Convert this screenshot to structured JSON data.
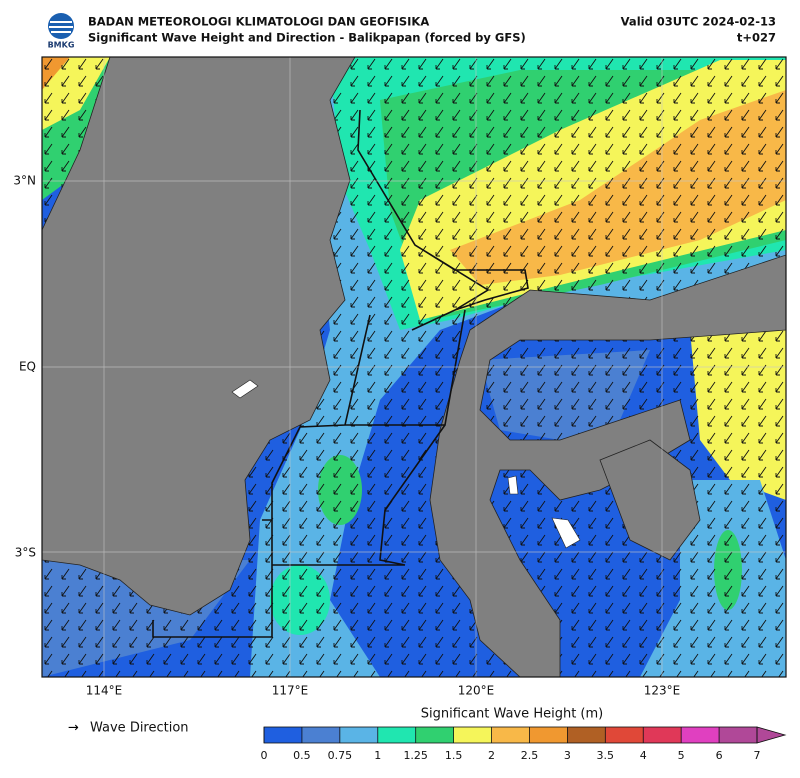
{
  "header": {
    "title": "BADAN METEOROLOGI KLIMATOLOGI DAN GEOFISIKA",
    "subtitle": "Significant Wave Height and Direction - Balikpapan (forced by GFS)",
    "valid": "Valid 03UTC 2024-02-13",
    "step": "t+027",
    "logo_text": "BMKG"
  },
  "map": {
    "lat_labels": [
      "3°N",
      "EQ",
      "3°S"
    ],
    "lon_labels": [
      "114°E",
      "117°E",
      "120°E",
      "123°E"
    ]
  },
  "legend": {
    "arrow": "→",
    "label": "Wave Direction"
  },
  "colorbar": {
    "title": "Significant Wave Height (m)",
    "ticks": [
      0,
      0.5,
      0.75,
      1,
      1.25,
      1.5,
      2,
      2.5,
      3,
      3.5,
      4,
      5,
      6,
      7
    ],
    "colors": [
      "#1f5fe0",
      "#4b80d2",
      "#5ab4e6",
      "#20e6b0",
      "#30d070",
      "#f5f55a",
      "#f8b848",
      "#f09830",
      "#b06024",
      "#e04838",
      "#e03858",
      "#e040c0",
      "#b04898"
    ]
  }
}
